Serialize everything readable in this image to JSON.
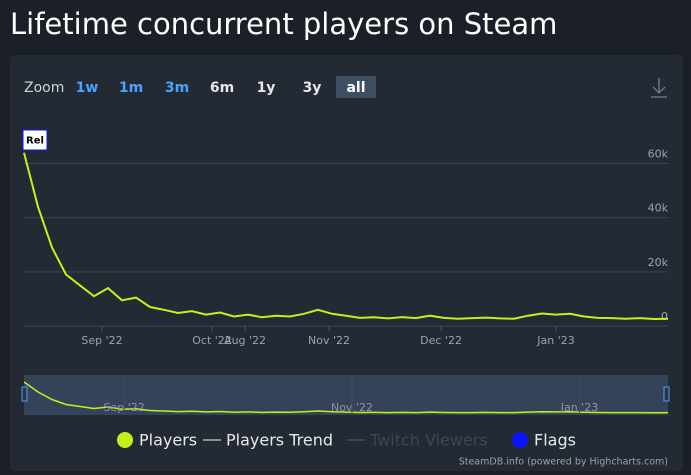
{
  "chart_data": {
    "type": "line",
    "title": "Lifetime concurrent players on Steam",
    "zoom_label": "Zoom",
    "zoom_buttons": [
      {
        "label": "1w",
        "color": "#4aa3ff"
      },
      {
        "label": "1m",
        "color": "#4aa3ff"
      },
      {
        "label": "3m",
        "color": "#4aa3ff"
      },
      {
        "label": "6m",
        "color": "#e6e6e6"
      },
      {
        "label": "1y",
        "color": "#e6e6e6"
      },
      {
        "label": "3y",
        "color": "#e6e6e6"
      },
      {
        "label": "all",
        "color": "#ffffff",
        "selected": true
      }
    ],
    "flag": "Rel",
    "series": [
      {
        "name": "Players",
        "color": "#c2f21a",
        "values": [
          64000,
          44000,
          29000,
          19000,
          15000,
          11000,
          14000,
          9500,
          10500,
          7000,
          6000,
          4800,
          5500,
          4200,
          5000,
          3500,
          4200,
          3200,
          3800,
          3500,
          4500,
          6000,
          4500,
          3800,
          3000,
          3200,
          2800,
          3300,
          2900,
          3800,
          3000,
          2700,
          2900,
          3100,
          2800,
          2700,
          3800,
          4600,
          4200,
          4500,
          3500,
          3000,
          2900,
          2700,
          2900,
          2600,
          2700
        ]
      }
    ],
    "legend": [
      {
        "name": "Players",
        "color": "#c2f21a",
        "symbol": "circle"
      },
      {
        "name": "Players Trend",
        "color": "#8a9097",
        "symbol": "line"
      },
      {
        "name": "Twitch Viewers",
        "color": "#3b4854",
        "symbol": "line",
        "hidden": true
      },
      {
        "name": "Flags",
        "color": "#0a14ff",
        "symbol": "circle"
      }
    ],
    "xlim": [
      0,
      46
    ],
    "xticks": [
      {
        "value": 5.57,
        "label": "Sep '22"
      },
      {
        "value": 13.43,
        "label": "Oct '22"
      },
      {
        "value": 15.79,
        "label": "Aug '22"
      },
      {
        "value": 21.79,
        "label": "Nov '22"
      },
      {
        "value": 29.79,
        "label": "Dec '22"
      },
      {
        "value": 38,
        "label": "Jan '23"
      }
    ],
    "navigator_xticks": [
      {
        "value": 7.17,
        "label": "Sep '22"
      },
      {
        "value": 23.5,
        "label": "Nov '22"
      },
      {
        "value": 39.8,
        "label": "Jan '23"
      }
    ],
    "ylim": [
      0,
      72000
    ],
    "yticks": [
      0,
      {
        "value": 20000,
        "label": "20k"
      },
      {
        "value": 40000,
        "label": "40k"
      },
      {
        "value": 60000,
        "label": "60k"
      }
    ],
    "grid": true,
    "credits": "SteamDB.info (powered by Highcharts.com)"
  }
}
